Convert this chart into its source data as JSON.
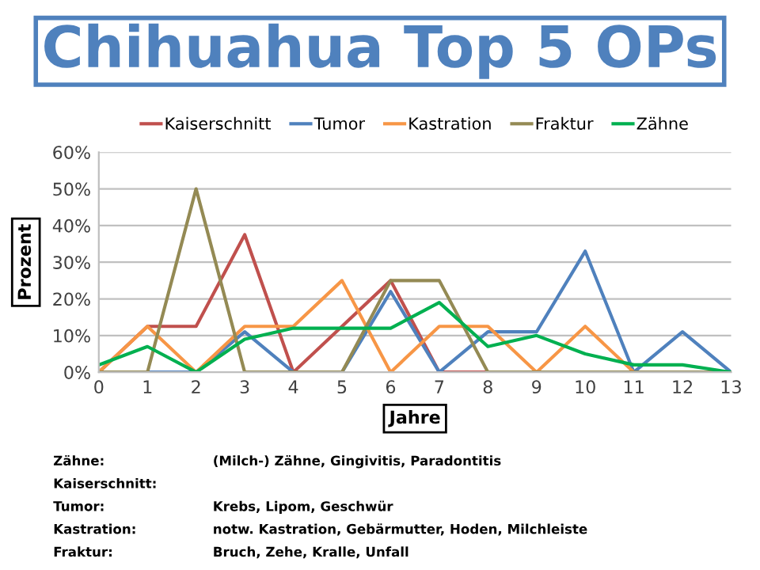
{
  "chart_data": {
    "type": "line",
    "title": "Chihuahua Top 5 OPs",
    "xlabel": "Jahre",
    "ylabel": "Prozent",
    "x": [
      0,
      1,
      2,
      3,
      4,
      5,
      6,
      7,
      8,
      9,
      10,
      11,
      12,
      13
    ],
    "series": [
      {
        "name": "Kaiserschnitt",
        "color": "#c0504d",
        "values": [
          0,
          12.5,
          12.5,
          37.5,
          0,
          12.5,
          25,
          0,
          0,
          0,
          0,
          0,
          0,
          0
        ]
      },
      {
        "name": "Tumor",
        "color": "#4f81bd",
        "values": [
          0,
          0,
          0,
          11,
          0,
          0,
          22,
          0,
          11,
          11,
          33,
          0,
          11,
          0
        ]
      },
      {
        "name": "Kastration",
        "color": "#f79646",
        "values": [
          0,
          12.5,
          0,
          12.5,
          12.5,
          25,
          0,
          12.5,
          12.5,
          0,
          12.5,
          0,
          0,
          0
        ]
      },
      {
        "name": "Fraktur",
        "color": "#948a54",
        "values": [
          0,
          0,
          50,
          0,
          0,
          0,
          25,
          25,
          0,
          0,
          0,
          0,
          0,
          0
        ]
      },
      {
        "name": "Zähne",
        "color": "#00b050",
        "values": [
          2,
          7,
          0,
          9,
          12,
          12,
          12,
          19,
          7,
          10,
          5,
          2,
          2,
          0
        ]
      }
    ],
    "xlim": [
      0,
      13
    ],
    "xticks": [
      0,
      1,
      2,
      3,
      4,
      5,
      6,
      7,
      8,
      9,
      10,
      11,
      12,
      13
    ],
    "ylim": [
      0,
      60
    ],
    "yticks": [
      {
        "value": 0,
        "label": "0%"
      },
      {
        "value": 10,
        "label": "10%"
      },
      {
        "value": 20,
        "label": "20%"
      },
      {
        "value": 30,
        "label": "30%"
      },
      {
        "value": 40,
        "label": "40%"
      },
      {
        "value": 50,
        "label": "50%"
      },
      {
        "value": 60,
        "label": "60%"
      }
    ],
    "grid": "y",
    "legend": "top",
    "marker": "none",
    "line_style": "solid",
    "annotations": [
      "Zähne:",
      "(Milch-) Zähne, Gingivitis, Paradontitis",
      "Kaiserschnitt:",
      "Tumor:",
      "Krebs, Lipom, Geschwür",
      "Kastration:",
      "notw. Kastration, Gebärmutter, Hoden, Milchleiste",
      "Fraktur:",
      "Bruch, Zehe, Kralle, Unfall"
    ]
  }
}
